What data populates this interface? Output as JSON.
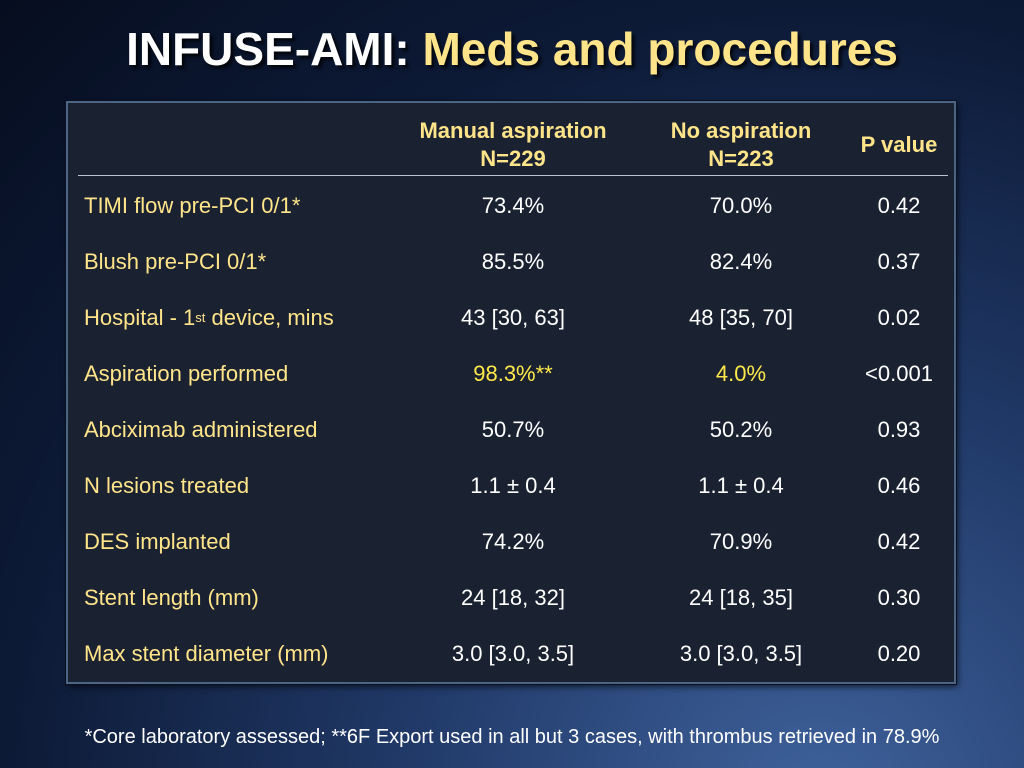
{
  "title": {
    "part1": "INFUSE-AMI:",
    "part2": "Meds and procedures"
  },
  "colors": {
    "label": "#ffe48a",
    "highlight": "#ffe94a",
    "panel": "#1a2231",
    "border": "#4d6585"
  },
  "table": {
    "headers": {
      "manual_line1": "Manual aspiration",
      "manual_line2": "N=229",
      "none_line1": "No aspiration",
      "none_line2": "N=223",
      "p_value": "P value"
    },
    "rows": [
      {
        "label": "TIMI flow pre-PCI 0/1*",
        "manual": "73.4%",
        "none": "70.0%",
        "p": "0.42"
      },
      {
        "label": "Blush pre-PCI 0/1*",
        "manual": "85.5%",
        "none": "82.4%",
        "p": "0.37"
      },
      {
        "label_pre": "Hospital - 1",
        "label_sup": "st",
        "label_post": " device, mins",
        "manual": "43 [30, 63]",
        "none": "48 [35, 70]",
        "p": "0.02"
      },
      {
        "label": "Aspiration performed",
        "manual": "98.3%**",
        "none": "4.0%",
        "p": "<0.001"
      },
      {
        "label": "Abciximab administered",
        "manual": "50.7%",
        "none": "50.2%",
        "p": "0.93"
      },
      {
        "label": "N lesions treated",
        "manual": "1.1 ± 0.4",
        "none": "1.1 ± 0.4",
        "p": "0.46"
      },
      {
        "label": "DES implanted",
        "manual": "74.2%",
        "none": "70.9%",
        "p": "0.42"
      },
      {
        "label": "Stent length (mm)",
        "manual": "24 [18, 32]",
        "none": "24 [18, 35]",
        "p": "0.30"
      },
      {
        "label": "Max stent diameter (mm)",
        "manual": "3.0 [3.0, 3.5]",
        "none": "3.0 [3.0, 3.5]",
        "p": "0.20"
      }
    ]
  },
  "footnote": "*Core laboratory assessed; **6F Export used in all but 3 cases, with thrombus retrieved in 78.9%"
}
